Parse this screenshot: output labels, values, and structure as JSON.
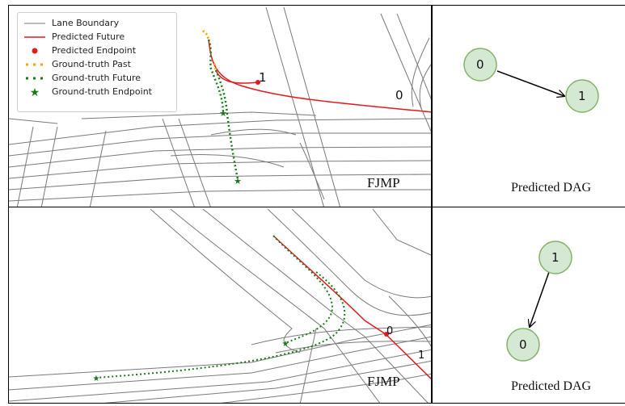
{
  "legend": {
    "lane_boundary": "Lane Boundary",
    "predicted_future": "Predicted Future",
    "predicted_endpoint": "Predicted Endpoint",
    "gt_past": "Ground-truth Past",
    "gt_future": "Ground-truth Future",
    "gt_endpoint": "Ground-truth Endpoint"
  },
  "colors": {
    "lane": "#7a7a7a",
    "predicted": "#e31a1c",
    "gt_past": "#ffa500",
    "gt_future": "#1a7a1a",
    "node_fill": "#d5e8d4",
    "node_stroke": "#82b366"
  },
  "row1": {
    "method": "FJMP",
    "agent_labels": [
      "1",
      "0"
    ],
    "dag": {
      "caption": "Predicted DAG",
      "nodes": [
        "0",
        "1"
      ],
      "edge": [
        "0",
        "1"
      ]
    }
  },
  "row2": {
    "method": "FJMP",
    "agent_labels": [
      "0",
      "1"
    ],
    "dag": {
      "caption": "Predicted DAG",
      "nodes": [
        "1",
        "0"
      ],
      "edge": [
        "1",
        "0"
      ]
    }
  }
}
